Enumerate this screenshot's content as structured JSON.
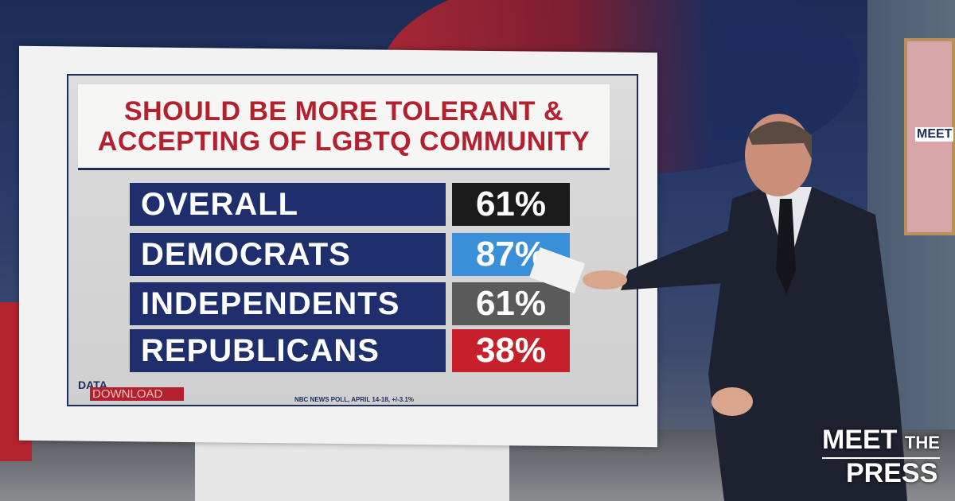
{
  "graphic": {
    "title_line1": "SHOULD BE MORE TOLERANT &",
    "title_line2": "ACCEPTING OF LGBTQ COMMUNITY",
    "rows": [
      {
        "label": "OVERALL",
        "value": "61%",
        "color": "#1a1a1a"
      },
      {
        "label": "DEMOCRATS",
        "value": "87%",
        "color": "#3a90d8"
      },
      {
        "label": "INDEPENDENTS",
        "value": "61%",
        "color": "#5a5a5a"
      },
      {
        "label": "REPUBLICANS",
        "value": "38%",
        "color": "#c8202a"
      }
    ],
    "brand_data": "DATA",
    "brand_download": "DOWNLOAD",
    "source": "NBC NEWS POLL, APRIL 14-18, +/-3.1%"
  },
  "chart_data": {
    "type": "table",
    "title": "SHOULD BE MORE TOLERANT & ACCEPTING OF LGBTQ COMMUNITY",
    "categories": [
      "OVERALL",
      "DEMOCRATS",
      "INDEPENDENTS",
      "REPUBLICANS"
    ],
    "values": [
      61,
      87,
      61,
      38
    ],
    "unit": "%",
    "source": "NBC NEWS POLL, APRIL 14-18, +/-3.1%"
  },
  "show_logo": {
    "line1": "MEET",
    "line2": "THE",
    "line3": "PRESS"
  },
  "poster_text": "MEET"
}
